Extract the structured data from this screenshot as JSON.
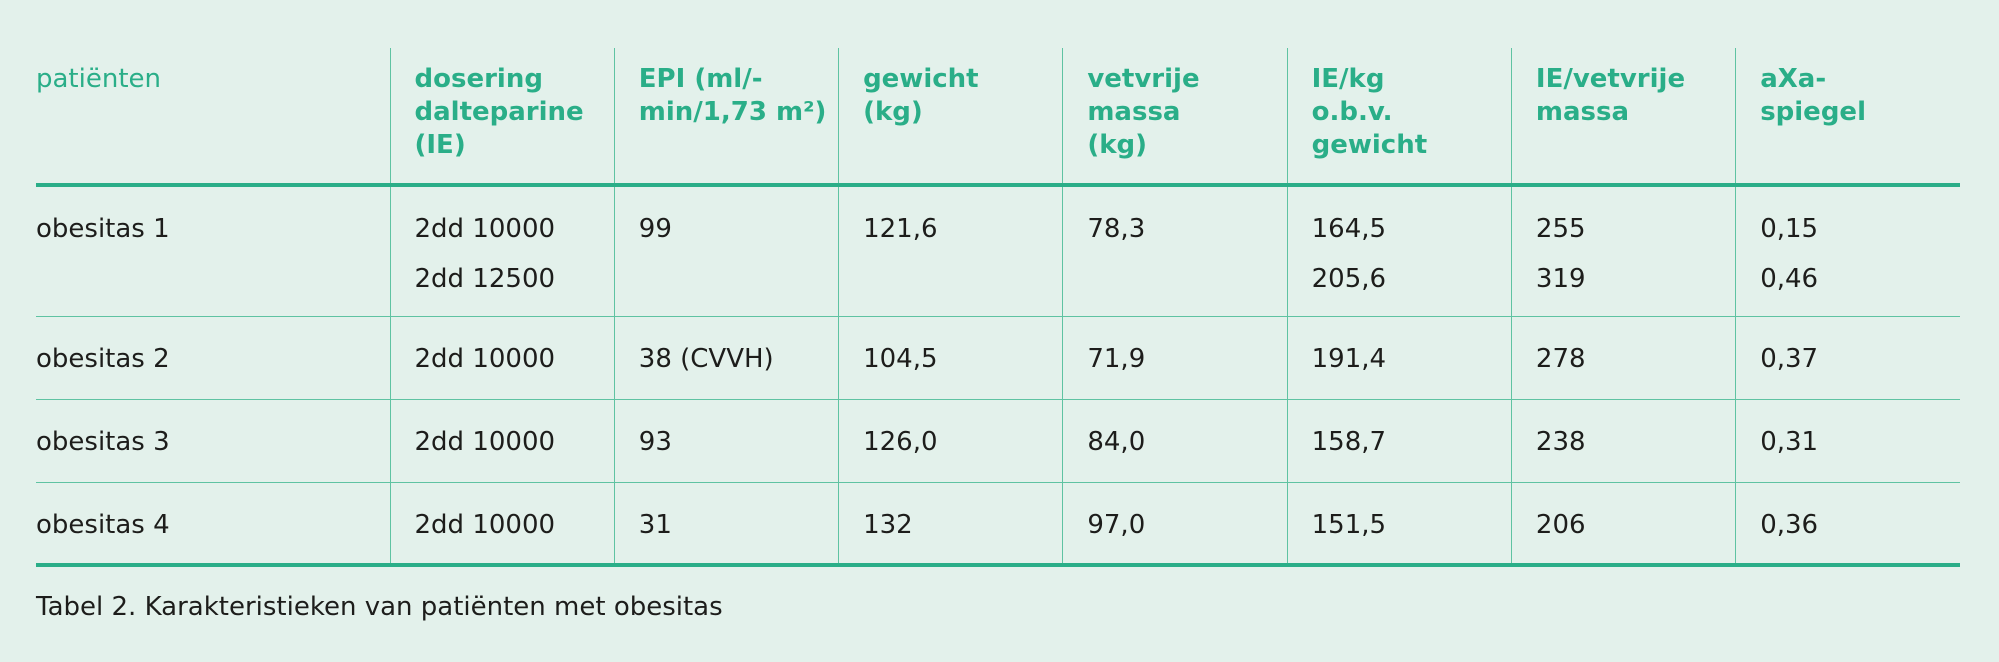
{
  "table": {
    "header": [
      [
        "patiënten"
      ],
      [
        "dosering",
        "dalteparine",
        "(IE)"
      ],
      [
        "EPI (ml/-",
        "min/1,73 m²)"
      ],
      [
        "gewicht",
        "(kg)"
      ],
      [
        "vetvrije",
        "massa",
        "(kg)"
      ],
      [
        "IE/kg",
        "o.b.v.",
        "gewicht"
      ],
      [
        "IE/vetvrije",
        "massa"
      ],
      [
        "aXa-",
        "spiegel"
      ]
    ],
    "rows": [
      [
        [
          "obesitas 1"
        ],
        [
          "2dd 10000",
          "2dd 12500"
        ],
        [
          "99"
        ],
        [
          "121,6"
        ],
        [
          "78,3"
        ],
        [
          "164,5",
          "205,6"
        ],
        [
          "255",
          "319"
        ],
        [
          "0,15",
          "0,46"
        ]
      ],
      [
        [
          "obesitas 2"
        ],
        [
          "2dd 10000"
        ],
        [
          "38 (CVVH)"
        ],
        [
          "104,5"
        ],
        [
          "71,9"
        ],
        [
          "191,4"
        ],
        [
          "278"
        ],
        [
          "0,37"
        ]
      ],
      [
        [
          "obesitas 3"
        ],
        [
          "2dd 10000"
        ],
        [
          "93"
        ],
        [
          "126,0"
        ],
        [
          "84,0"
        ],
        [
          "158,7"
        ],
        [
          "238"
        ],
        [
          "0,31"
        ]
      ],
      [
        [
          "obesitas 4"
        ],
        [
          "2dd 10000"
        ],
        [
          "31"
        ],
        [
          "132"
        ],
        [
          "97,0"
        ],
        [
          "151,5"
        ],
        [
          "206"
        ],
        [
          "0,36"
        ]
      ]
    ]
  },
  "caption": "Tabel 2. Karakteristieken van patiënten met obesitas"
}
